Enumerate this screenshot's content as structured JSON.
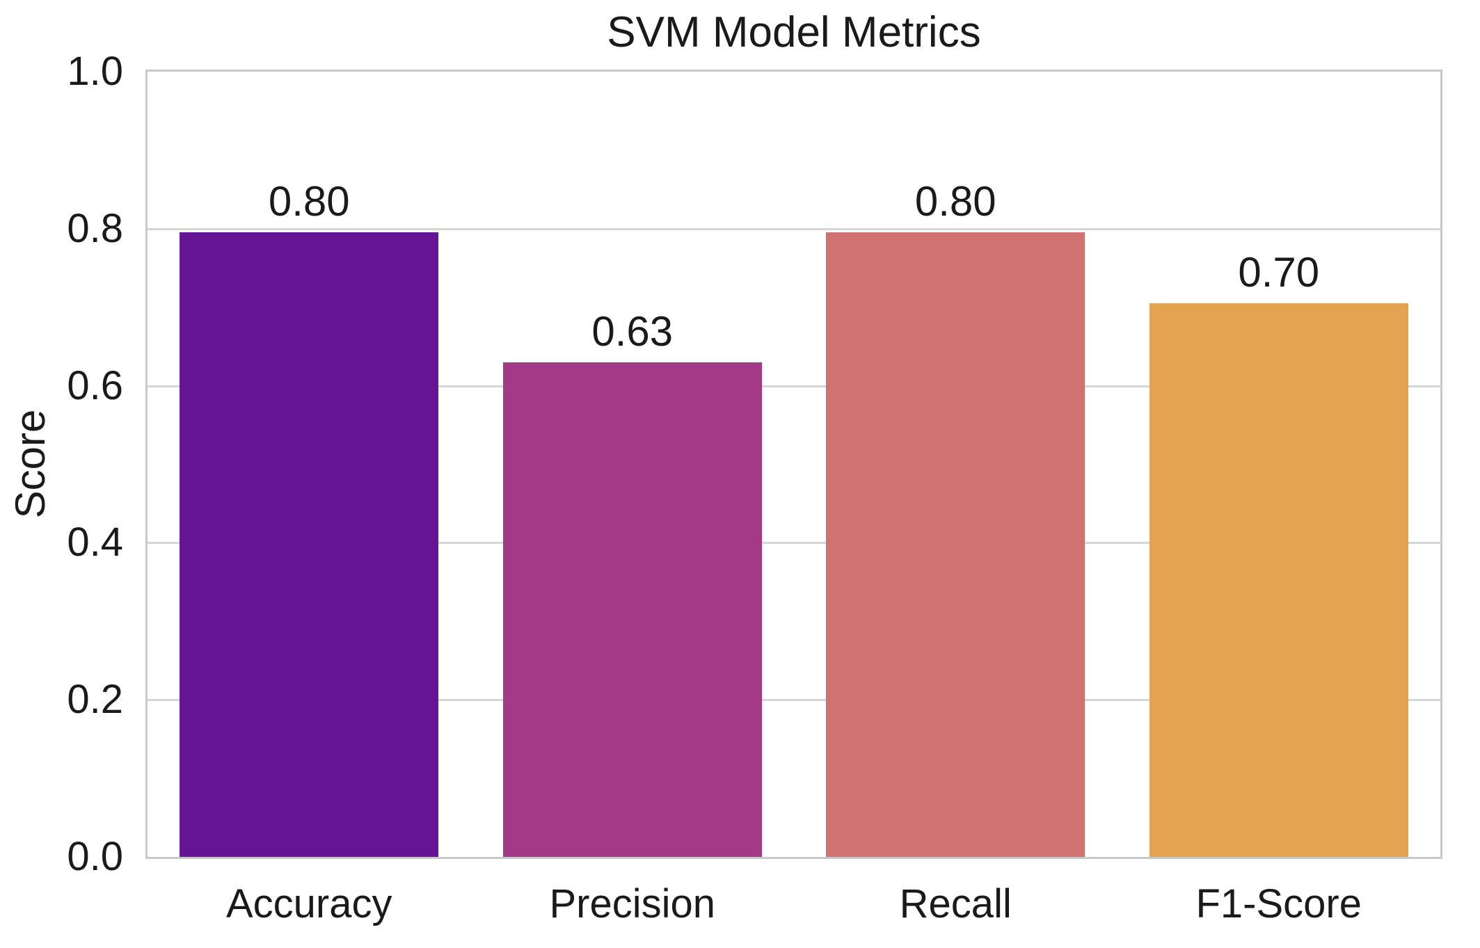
{
  "chart_data": {
    "type": "bar",
    "title": "SVM Model Metrics",
    "xlabel": "",
    "ylabel": "Score",
    "categories": [
      "Accuracy",
      "Precision",
      "Recall",
      "F1-Score"
    ],
    "values": [
      0.795,
      0.63,
      0.795,
      0.705
    ],
    "bar_labels": [
      "0.80",
      "0.63",
      "0.80",
      "0.70"
    ],
    "bar_colors": [
      "#651594",
      "#A23A87",
      "#D17272",
      "#E3A350"
    ],
    "ylim": [
      0,
      1.0
    ],
    "yticks": [
      0.0,
      0.2,
      0.4,
      0.6,
      0.8,
      1.0
    ],
    "ytick_labels": [
      "0.0",
      "0.2",
      "0.4",
      "0.6",
      "0.8",
      "1.0"
    ],
    "grid": "horizontal",
    "legend": "none",
    "bar_width_fraction": 0.8
  },
  "style": {
    "background_color": "#ffffff",
    "grid_color": "#d6d6d6",
    "spine_color": "#c9c9c9",
    "text_color": "#1a1a1a"
  }
}
